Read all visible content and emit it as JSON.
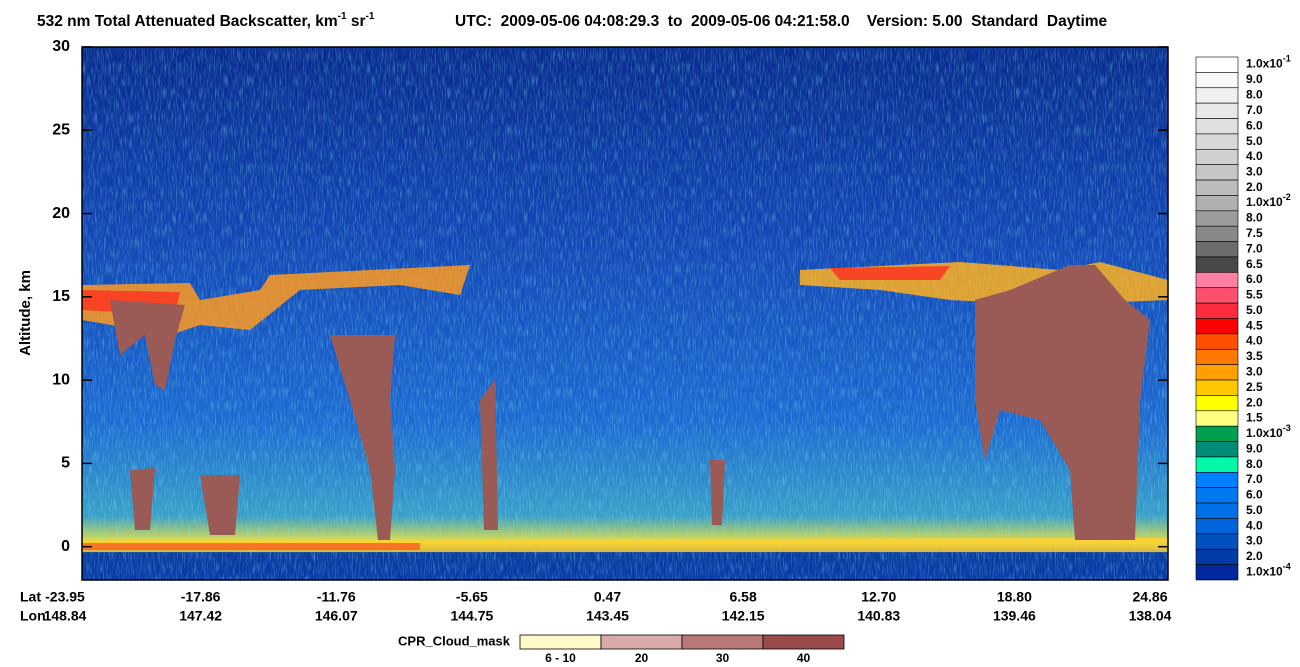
{
  "chart_data": {
    "type": "heatmap",
    "title": [
      {
        "text": "532 nm Total Attenuated Backscatter, km"
      },
      {
        "text": "-1",
        "sup": true
      },
      {
        "text": " sr"
      },
      {
        "text": "-1",
        "sup": true
      }
    ],
    "subtitle": "UTC:  2009-05-06 04:08:29.3  to  2009-05-06 04:21:58.0    Version: 5.00  Standard  Daytime",
    "y_label": "Altitude, km",
    "ylim": [
      -2,
      30
    ],
    "yticks": [
      0,
      5,
      10,
      15,
      20,
      25,
      30
    ],
    "x_rows": [
      {
        "name": "Lat",
        "labels": [
          "-23.95",
          "-17.86",
          "-11.76",
          "-5.65",
          "0.47",
          "6.58",
          "12.70",
          "18.80",
          "24.86"
        ]
      },
      {
        "name": "Lon",
        "labels": [
          "148.84",
          "147.42",
          "146.07",
          "144.75",
          "143.45",
          "142.15",
          "140.83",
          "139.46",
          "138.04"
        ]
      }
    ],
    "colorbar": [
      {
        "base": "1.0x10",
        "exp": "-1",
        "color": "#ffffff"
      },
      {
        "label": "9.0",
        "color": "#f8f8f8"
      },
      {
        "label": "8.0",
        "color": "#f0f0f0"
      },
      {
        "label": "7.0",
        "color": "#e8e8e8"
      },
      {
        "label": "6.0",
        "color": "#e0e0e0"
      },
      {
        "label": "5.0",
        "color": "#d8d8d8"
      },
      {
        "label": "4.0",
        "color": "#d0d0d0"
      },
      {
        "label": "3.0",
        "color": "#c6c6c6"
      },
      {
        "label": "2.0",
        "color": "#bcbcbc"
      },
      {
        "base": "1.0x10",
        "exp": "-2",
        "color": "#b0b0b0"
      },
      {
        "label": "8.0",
        "color": "#9c9c9c"
      },
      {
        "label": "7.5",
        "color": "#888888"
      },
      {
        "label": "7.0",
        "color": "#6c6c6c"
      },
      {
        "label": "6.5",
        "color": "#484848"
      },
      {
        "label": "6.0",
        "color": "#ff7fa0"
      },
      {
        "label": "5.5",
        "color": "#ff5070"
      },
      {
        "label": "5.0",
        "color": "#ff2a3c"
      },
      {
        "label": "4.5",
        "color": "#ff0000"
      },
      {
        "label": "4.0",
        "color": "#ff5000"
      },
      {
        "label": "3.5",
        "color": "#ff7800"
      },
      {
        "label": "3.0",
        "color": "#ffa000"
      },
      {
        "label": "2.5",
        "color": "#ffc800"
      },
      {
        "label": "2.0",
        "color": "#ffff00"
      },
      {
        "label": "1.5",
        "color": "#ffff80"
      },
      {
        "base": "1.0x10",
        "exp": "-3",
        "color": "#00a050"
      },
      {
        "label": "9.0",
        "color": "#008c78"
      },
      {
        "label": "8.0",
        "color": "#00f8a8"
      },
      {
        "label": "7.0",
        "color": "#0080ff"
      },
      {
        "label": "6.0",
        "color": "#0078f0"
      },
      {
        "label": "5.0",
        "color": "#0070e8"
      },
      {
        "label": "4.0",
        "color": "#0064dc"
      },
      {
        "label": "3.0",
        "color": "#0050c0"
      },
      {
        "label": "2.0",
        "color": "#003ca8"
      },
      {
        "base": "1.0x10",
        "exp": "-4",
        "color": "#0028a0"
      }
    ],
    "cloud_mask": {
      "name": "CPR_Cloud_mask",
      "items": [
        {
          "label": "6 - 10",
          "color": "#fffac8"
        },
        {
          "label": "20",
          "color": "#d8aaa8"
        },
        {
          "label": "30",
          "color": "#b87878"
        },
        {
          "label": "40",
          "color": "#9a4a48"
        }
      ]
    }
  }
}
